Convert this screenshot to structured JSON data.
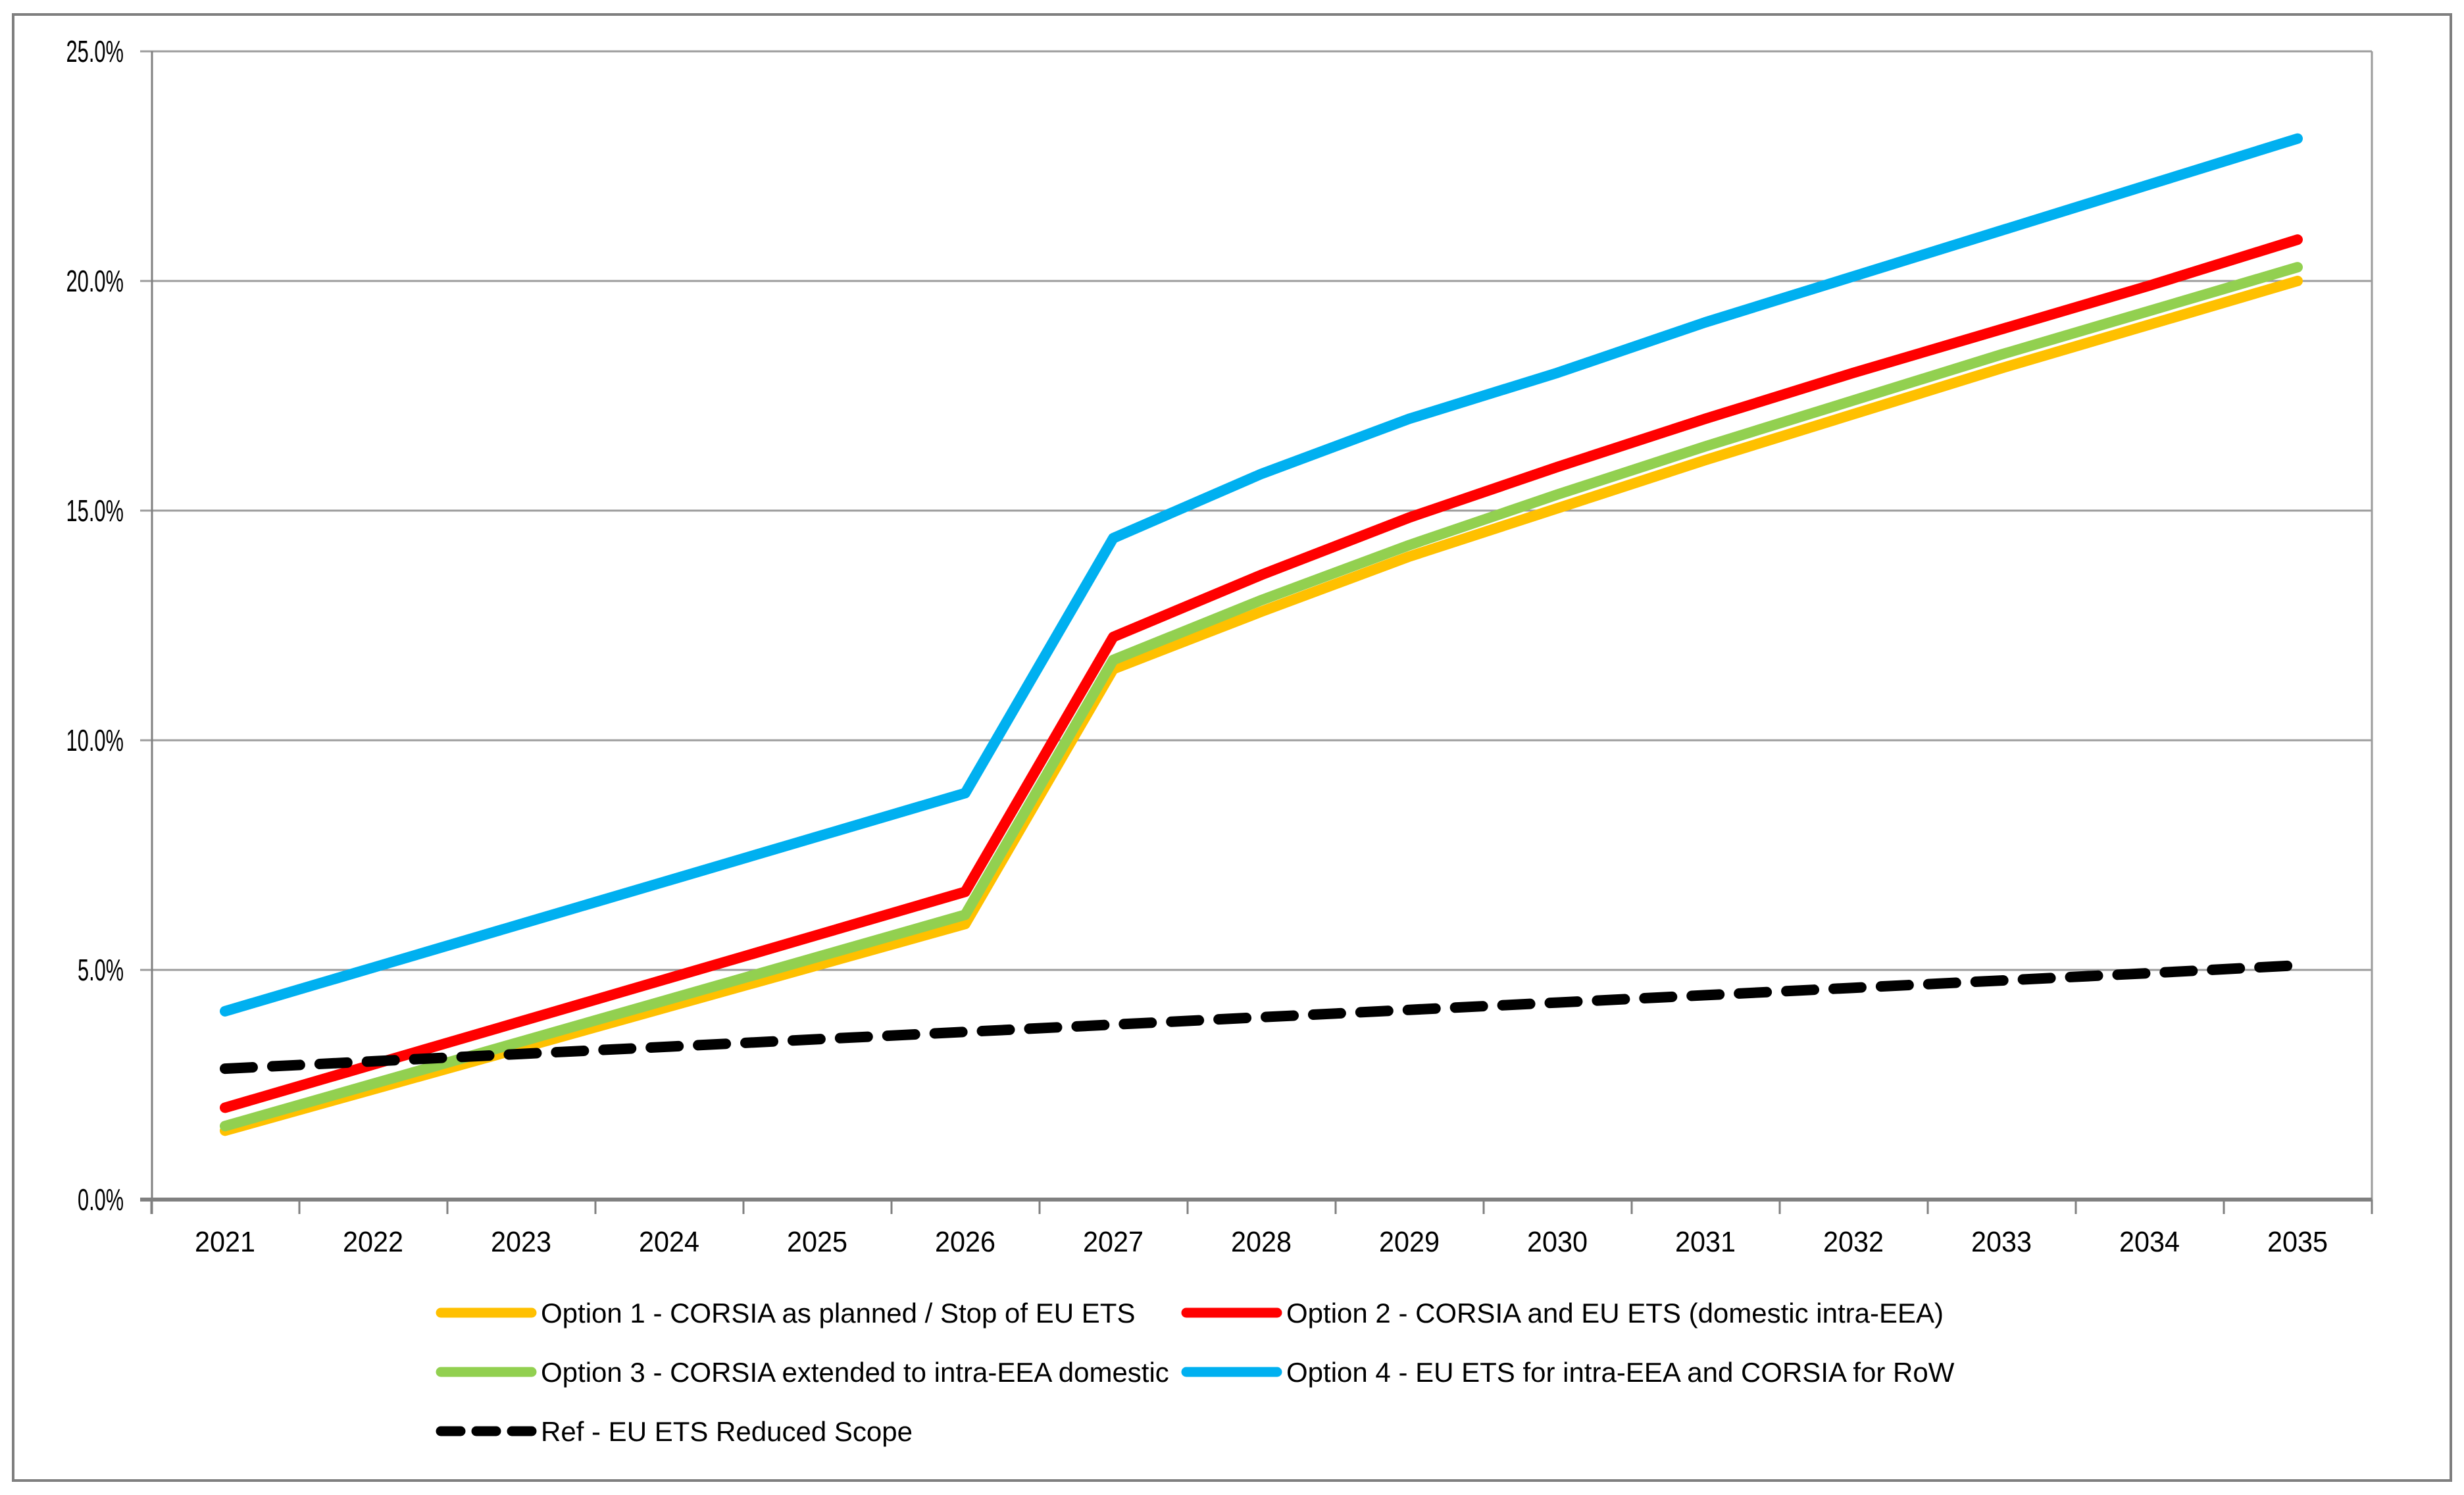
{
  "figure": {
    "background": "#FFFFFF",
    "border_color": "#7F7F7F"
  },
  "chart_data": {
    "type": "line",
    "title": "",
    "xlabel": "",
    "ylabel": "",
    "x_labels": [
      "2021",
      "2022",
      "2023",
      "2024",
      "2025",
      "2026",
      "2027",
      "2028",
      "2029",
      "2030",
      "2031",
      "2032",
      "2033",
      "2034",
      "2035"
    ],
    "y_ticks": [
      "0.0%",
      "5.0%",
      "10.0%",
      "15.0%",
      "20.0%",
      "25.0%"
    ],
    "ylim": [
      0,
      25
    ],
    "y_tick_step": 5,
    "grid": true,
    "legend_position": "bottom",
    "axis_color": "#808080",
    "grid_color": "#9C9C9C",
    "series": [
      {
        "id": "option1",
        "name": "Option 1 - CORSIA as planned / Stop of EU ETS",
        "color": "#FFC000",
        "dashed": false,
        "values": [
          1.5,
          2.4,
          3.3,
          4.2,
          5.1,
          6.0,
          11.55,
          12.8,
          14.0,
          15.05,
          16.1,
          17.1,
          18.1,
          19.05,
          20.0
        ]
      },
      {
        "id": "option2",
        "name": "Option 2 - CORSIA and EU ETS (domestic intra-EEA)",
        "color": "#FF0000",
        "dashed": false,
        "values": [
          2.0,
          2.94,
          3.88,
          4.82,
          5.76,
          6.7,
          12.25,
          13.6,
          14.85,
          15.95,
          17.0,
          18.0,
          18.95,
          19.9,
          20.9
        ]
      },
      {
        "id": "option3",
        "name": "Option 3 - CORSIA extended to intra-EEA domestic",
        "color": "#92D050",
        "dashed": false,
        "values": [
          1.6,
          2.52,
          3.44,
          4.36,
          5.28,
          6.2,
          11.75,
          13.05,
          14.25,
          15.35,
          16.4,
          17.4,
          18.4,
          19.35,
          20.3
        ]
      },
      {
        "id": "option4",
        "name": "Option 4 - EU ETS for intra-EEA and CORSIA for RoW",
        "color": "#00B0F0",
        "dashed": false,
        "values": [
          4.1,
          5.05,
          6.0,
          6.95,
          7.9,
          8.85,
          14.4,
          15.8,
          17.0,
          18.0,
          19.1,
          20.1,
          21.1,
          22.1,
          23.1
        ]
      },
      {
        "id": "ref",
        "name": "Ref - EU ETS Reduced Scope",
        "color": "#000000",
        "dashed": true,
        "values": [
          2.85,
          3.01,
          3.17,
          3.33,
          3.49,
          3.65,
          3.81,
          3.97,
          4.13,
          4.29,
          4.45,
          4.61,
          4.77,
          4.93,
          5.1
        ]
      }
    ],
    "legend_columns": [
      [
        0,
        2,
        4
      ],
      [
        1,
        3
      ]
    ]
  }
}
